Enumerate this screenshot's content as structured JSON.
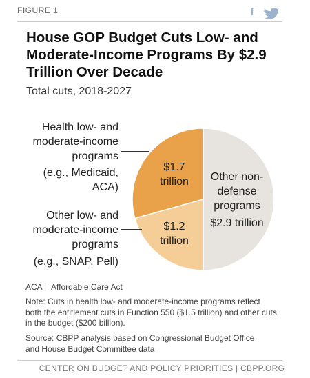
{
  "header": {
    "figure": "FIGURE 1"
  },
  "chart_data": {
    "type": "pie",
    "title": "House GOP Budget Cuts Low- and Moderate-Income Programs By $2.9 Trillion Over Decade",
    "subtitle": "Total cuts, 2018-2027",
    "categories": [
      "Health low- and moderate-income programs",
      "Other low- and moderate-income programs",
      "Other non-defense programs"
    ],
    "category_notes": [
      "(e.g., Medicaid, ACA)",
      "(e.g., SNAP, Pell)",
      null
    ],
    "values": [
      1.7,
      1.2,
      2.9
    ],
    "value_labels": [
      "$1.7 trillion",
      "$1.2 trillion",
      "$2.9 trillion"
    ],
    "colors": [
      "#e9a24a",
      "#f5cd96",
      "#e7e3de"
    ]
  },
  "notes": {
    "abbreviation": "ACA = Affordable Care Act",
    "note": "Note: Cuts in health low- and moderate-income programs reflect both the entitlement cuts in Function 550 ($1.5 trillion) and other cuts in the budget ($200 billion).",
    "source": "Source: CBPP analysis based on Congressional Budget Office and House Budget Committee data"
  },
  "footer": {
    "text": "CENTER ON BUDGET AND POLICY PRIORITIES | CBPP.ORG"
  }
}
